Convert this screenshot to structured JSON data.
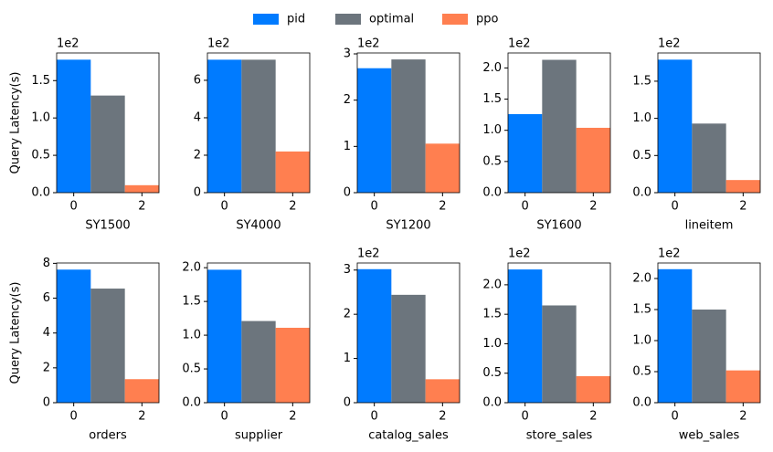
{
  "legend": {
    "names": [
      "pid",
      "optimal",
      "ppo"
    ],
    "colors": [
      "#007bff",
      "#6c757d",
      "#ff7f50"
    ]
  },
  "chart_data": [
    {
      "type": "bar",
      "xlabel": "SY1500",
      "ylabel": "Query Latency(s)",
      "y_offset_label": "1e2",
      "x": [
        0,
        1,
        2
      ],
      "values": [
        1.78,
        1.3,
        0.1
      ],
      "xlim": [
        -0.5,
        2.5
      ],
      "xticks": [
        0,
        2
      ],
      "ylim": [
        0,
        1.87
      ],
      "yticks": [
        {
          "value": 0,
          "label": "0.0"
        },
        0.5,
        {
          "value": 1,
          "label": "1.0"
        },
        1.5
      ]
    },
    {
      "type": "bar",
      "xlabel": "SY4000",
      "y_offset_label": "1e2",
      "x": [
        0,
        1,
        2
      ],
      "values": [
        7.1,
        7.1,
        2.2
      ],
      "xlim": [
        -0.5,
        2.5
      ],
      "xticks": [
        0,
        2
      ],
      "ylim": [
        0,
        7.46
      ],
      "yticks": [
        0,
        2,
        4,
        6
      ]
    },
    {
      "type": "bar",
      "xlabel": "SY1200",
      "y_offset_label": "1e2",
      "x": [
        0,
        1,
        2
      ],
      "values": [
        2.69,
        2.88,
        1.06
      ],
      "xlim": [
        -0.5,
        2.5
      ],
      "xticks": [
        0,
        2
      ],
      "ylim": [
        0,
        3.02
      ],
      "yticks": [
        0,
        1,
        2,
        3
      ]
    },
    {
      "type": "bar",
      "xlabel": "SY1600",
      "y_offset_label": "1e2",
      "x": [
        0,
        1,
        2
      ],
      "values": [
        1.26,
        2.13,
        1.04
      ],
      "xlim": [
        -0.5,
        2.5
      ],
      "xticks": [
        0,
        2
      ],
      "ylim": [
        0,
        2.24
      ],
      "yticks": [
        {
          "value": 0,
          "label": "0.0"
        },
        0.5,
        {
          "value": 1,
          "label": "1.0"
        },
        1.5,
        {
          "value": 2,
          "label": "2.0"
        }
      ]
    },
    {
      "type": "bar",
      "xlabel": "lineitem",
      "y_offset_label": "1e2",
      "x": [
        0,
        1,
        2
      ],
      "values": [
        1.79,
        0.93,
        0.17
      ],
      "xlim": [
        -0.5,
        2.5
      ],
      "xticks": [
        0,
        2
      ],
      "ylim": [
        0,
        1.88
      ],
      "yticks": [
        {
          "value": 0,
          "label": "0.0"
        },
        0.5,
        {
          "value": 1,
          "label": "1.0"
        },
        1.5
      ]
    },
    {
      "type": "bar",
      "xlabel": "orders",
      "ylabel": "Query Latency(s)",
      "x": [
        0,
        1,
        2
      ],
      "values": [
        7.64,
        6.55,
        1.35
      ],
      "xlim": [
        -0.5,
        2.5
      ],
      "xticks": [
        0,
        2
      ],
      "ylim": [
        0,
        8.02
      ],
      "yticks": [
        0,
        2,
        4,
        6,
        8
      ]
    },
    {
      "type": "bar",
      "xlabel": "supplier",
      "x": [
        0,
        1,
        2
      ],
      "values": [
        1.97,
        1.21,
        1.11
      ],
      "xlim": [
        -0.5,
        2.5
      ],
      "xticks": [
        0,
        2
      ],
      "ylim": [
        0,
        2.07
      ],
      "yticks": [
        {
          "value": 0,
          "label": "0.0"
        },
        0.5,
        {
          "value": 1,
          "label": "1.0"
        },
        1.5,
        {
          "value": 2,
          "label": "2.0"
        }
      ]
    },
    {
      "type": "bar",
      "xlabel": "catalog_sales",
      "y_offset_label": "1e2",
      "x": [
        0,
        1,
        2
      ],
      "values": [
        3.02,
        2.44,
        0.53
      ],
      "xlim": [
        -0.5,
        2.5
      ],
      "xticks": [
        0,
        2
      ],
      "ylim": [
        0,
        3.16
      ],
      "yticks": [
        0,
        1,
        2,
        3
      ]
    },
    {
      "type": "bar",
      "xlabel": "store_sales",
      "y_offset_label": "1e2",
      "x": [
        0,
        1,
        2
      ],
      "values": [
        2.26,
        1.65,
        0.45
      ],
      "xlim": [
        -0.5,
        2.5
      ],
      "xticks": [
        0,
        2
      ],
      "ylim": [
        0,
        2.37
      ],
      "yticks": [
        {
          "value": 0,
          "label": "0.0"
        },
        0.5,
        {
          "value": 1,
          "label": "1.0"
        },
        1.5,
        {
          "value": 2,
          "label": "2.0"
        }
      ]
    },
    {
      "type": "bar",
      "xlabel": "web_sales",
      "y_offset_label": "1e2",
      "x": [
        0,
        1,
        2
      ],
      "values": [
        2.15,
        1.5,
        0.52
      ],
      "xlim": [
        -0.5,
        2.5
      ],
      "xticks": [
        0,
        2
      ],
      "ylim": [
        0,
        2.25
      ],
      "yticks": [
        {
          "value": 0,
          "label": "0.0"
        },
        0.5,
        {
          "value": 1,
          "label": "1.0"
        },
        1.5,
        {
          "value": 2,
          "label": "2.0"
        }
      ]
    }
  ]
}
